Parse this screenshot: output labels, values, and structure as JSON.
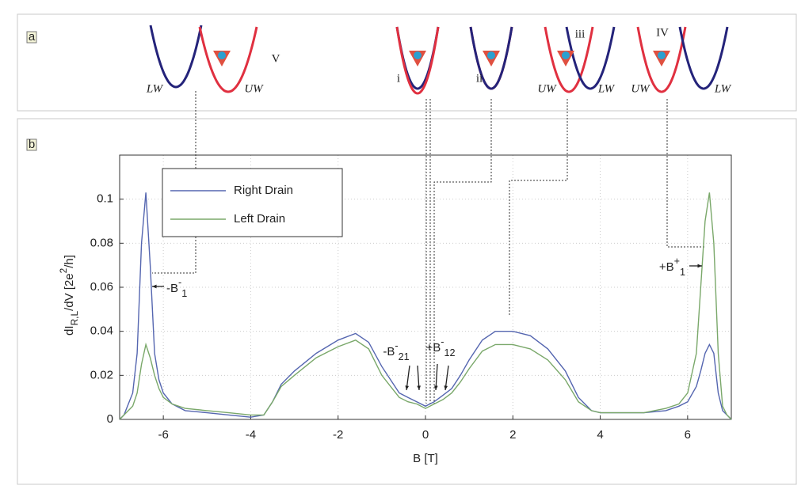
{
  "chart_data": {
    "type": "line",
    "panel_labels": [
      "a",
      "b"
    ],
    "diagram_labels": [
      "LW",
      "UW",
      "V",
      "i",
      "ii",
      "iii",
      "UW",
      "LW",
      "IV",
      "UW",
      "LW"
    ],
    "xlabel": "B [T]",
    "ylabel": [
      {
        "text": "dI"
      },
      {
        "sub": "R,L"
      },
      {
        "text": "/dV [2e"
      },
      {
        "sup": "2"
      },
      {
        "text": "/h]"
      }
    ],
    "x": [
      -7,
      -6.9,
      -6.7,
      -6.6,
      -6.5,
      -6.4,
      -6.3,
      -6.2,
      -6.1,
      -6,
      -5.8,
      -5.5,
      -5,
      -4.5,
      -4,
      -3.7,
      -3.5,
      -3.3,
      -3,
      -2.5,
      -2,
      -1.6,
      -1.3,
      -1,
      -0.8,
      -0.6,
      -0.4,
      -0.2,
      0,
      0.2,
      0.4,
      0.6,
      0.8,
      1,
      1.3,
      1.6,
      2,
      2.4,
      2.8,
      3.2,
      3.5,
      3.8,
      4,
      4.5,
      5,
      5.5,
      5.8,
      6,
      6.2,
      6.3,
      6.4,
      6.5,
      6.6,
      6.7,
      6.8,
      6.9,
      7
    ],
    "series": [
      {
        "name": "Right Drain",
        "color": "#5566b0",
        "values": [
          0,
          0.002,
          0.012,
          0.03,
          0.08,
          0.103,
          0.07,
          0.03,
          0.018,
          0.012,
          0.007,
          0.004,
          0.003,
          0.002,
          0.001,
          0.002,
          0.008,
          0.016,
          0.022,
          0.03,
          0.036,
          0.039,
          0.035,
          0.024,
          0.018,
          0.012,
          0.01,
          0.008,
          0.006,
          0.008,
          0.011,
          0.014,
          0.02,
          0.027,
          0.036,
          0.04,
          0.04,
          0.038,
          0.032,
          0.022,
          0.01,
          0.004,
          0.003,
          0.003,
          0.003,
          0.004,
          0.006,
          0.008,
          0.015,
          0.022,
          0.03,
          0.034,
          0.03,
          0.012,
          0.004,
          0.002,
          0
        ]
      },
      {
        "name": "Left Drain",
        "color": "#7aa86a",
        "values": [
          0,
          0.002,
          0.006,
          0.012,
          0.025,
          0.034,
          0.028,
          0.02,
          0.014,
          0.01,
          0.007,
          0.005,
          0.004,
          0.003,
          0.002,
          0.002,
          0.008,
          0.015,
          0.02,
          0.028,
          0.033,
          0.036,
          0.032,
          0.02,
          0.015,
          0.01,
          0.008,
          0.007,
          0.005,
          0.007,
          0.009,
          0.012,
          0.017,
          0.023,
          0.031,
          0.034,
          0.034,
          0.032,
          0.027,
          0.018,
          0.008,
          0.004,
          0.003,
          0.003,
          0.003,
          0.005,
          0.007,
          0.012,
          0.03,
          0.06,
          0.09,
          0.103,
          0.08,
          0.03,
          0.006,
          0.002,
          0
        ]
      }
    ],
    "annotations": [
      {
        "text": "-B",
        "sub": "1",
        "sup": "-"
      },
      {
        "text": "+B",
        "sub": "1",
        "sup": "+"
      },
      {
        "text": "-B",
        "sub": "21",
        "sup": "-"
      },
      {
        "text": "+B",
        "sub": "12",
        "sup": "-"
      }
    ],
    "xlim": [
      -7,
      7
    ],
    "xticks": [
      -6,
      -4,
      -2,
      0,
      2,
      4,
      6
    ],
    "ylim": [
      0,
      0.12
    ],
    "yticks": [
      0,
      0.02,
      0.04,
      0.06,
      0.08,
      0.1
    ],
    "grid": true,
    "legend": "upper left"
  }
}
